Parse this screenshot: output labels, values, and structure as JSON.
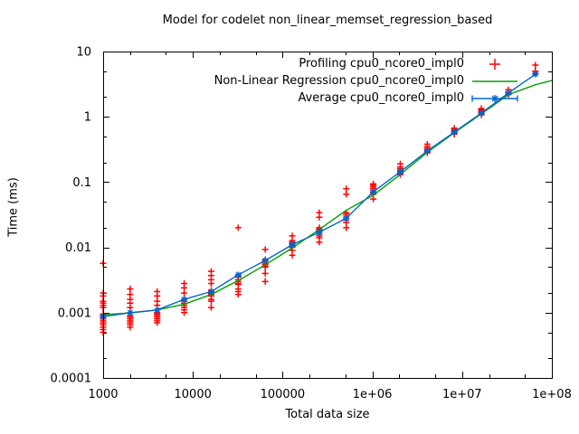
{
  "chart_data": {
    "type": "scatter",
    "title": "Model for codelet non_linear_memset_regression_based",
    "xlabel": "Total data size",
    "ylabel": "Time (ms)",
    "xlim": [
      1000,
      100000000
    ],
    "ylim": [
      0.0001,
      10
    ],
    "log_x": true,
    "log_y": true,
    "grid": false,
    "legend_position": "top-right-inside",
    "x_ticks": [
      {
        "value": 1000,
        "label": "1000"
      },
      {
        "value": 10000,
        "label": "10000"
      },
      {
        "value": 100000,
        "label": "100000"
      },
      {
        "value": 1000000,
        "label": "1e+06"
      },
      {
        "value": 10000000,
        "label": "1e+07"
      },
      {
        "value": 100000000,
        "label": "1e+08"
      }
    ],
    "y_ticks": [
      {
        "value": 0.0001,
        "label": "0.0001"
      },
      {
        "value": 0.001,
        "label": "0.001"
      },
      {
        "value": 0.01,
        "label": "0.01"
      },
      {
        "value": 0.1,
        "label": "0.1"
      },
      {
        "value": 1,
        "label": "1"
      },
      {
        "value": 10,
        "label": "10"
      }
    ],
    "minor_tick_multipliers": [
      2,
      5
    ],
    "series": [
      {
        "name": "Profiling cpu0_ncore0_impl0",
        "style": "points",
        "marker": "plus",
        "color": "#ff0000",
        "clusters": [
          {
            "x": 1000,
            "values": [
              0.0057,
              0.002,
              0.0018,
              0.0015,
              0.0014,
              0.0013,
              0.0012,
              0.00095,
              0.0009,
              0.00085,
              0.0008,
              0.00075,
              0.0007,
              0.00065,
              0.0006,
              0.00055,
              0.0005
            ]
          },
          {
            "x": 2000,
            "values": [
              0.0023,
              0.0019,
              0.0016,
              0.0014,
              0.0012,
              0.0009,
              0.00085,
              0.0008,
              0.00075,
              0.0007,
              0.00065,
              0.0006
            ]
          },
          {
            "x": 4000,
            "values": [
              0.0021,
              0.0018,
              0.0015,
              0.0013,
              0.001,
              0.00095,
              0.0009,
              0.00085,
              0.0008,
              0.00075,
              0.0007
            ]
          },
          {
            "x": 8000,
            "values": [
              0.0028,
              0.0024,
              0.002,
              0.0016,
              0.0015,
              0.0014,
              0.0013,
              0.0012,
              0.0011,
              0.001
            ]
          },
          {
            "x": 16000,
            "values": [
              0.0043,
              0.0037,
              0.0032,
              0.0028,
              0.0022,
              0.0021,
              0.002,
              0.0019,
              0.0018,
              0.0016,
              0.0015,
              0.0012
            ]
          },
          {
            "x": 32000,
            "values": [
              0.02,
              0.0037,
              0.0035,
              0.0032,
              0.003,
              0.0028,
              0.0027,
              0.0023,
              0.0021,
              0.0019
            ]
          },
          {
            "x": 64000,
            "values": [
              0.0093,
              0.0065,
              0.0062,
              0.0058,
              0.0055,
              0.0052,
              0.005,
              0.004,
              0.003
            ]
          },
          {
            "x": 128000,
            "values": [
              0.015,
              0.0127,
              0.012,
              0.0115,
              0.011,
              0.0105,
              0.01,
              0.009,
              0.0076
            ]
          },
          {
            "x": 256000,
            "values": [
              0.034,
              0.029,
              0.02,
              0.019,
              0.018,
              0.017,
              0.016,
              0.015,
              0.014,
              0.012
            ]
          },
          {
            "x": 512000,
            "values": [
              0.079,
              0.065,
              0.034,
              0.032,
              0.03,
              0.028,
              0.026,
              0.024,
              0.02
            ]
          },
          {
            "x": 1024000,
            "values": [
              0.094,
              0.09,
              0.085,
              0.08,
              0.075,
              0.07,
              0.068,
              0.065,
              0.055
            ]
          },
          {
            "x": 2048000,
            "values": [
              0.19,
              0.17,
              0.16,
              0.15,
              0.145,
              0.14,
              0.135,
              0.13
            ]
          },
          {
            "x": 4096000,
            "values": [
              0.38,
              0.35,
              0.33,
              0.31,
              0.3,
              0.29,
              0.28
            ]
          },
          {
            "x": 8192000,
            "values": [
              0.67,
              0.64,
              0.62,
              0.6,
              0.58,
              0.56,
              0.54
            ]
          },
          {
            "x": 16384000,
            "values": [
              1.34,
              1.28,
              1.22,
              1.17,
              1.12,
              1.07
            ]
          },
          {
            "x": 32768000,
            "values": [
              2.6,
              2.4,
              2.2
            ]
          },
          {
            "x": 65536000,
            "values": [
              6.2,
              5.0,
              4.6
            ]
          }
        ]
      },
      {
        "name": "Non-Linear Regression cpu0_ncore0_impl0",
        "style": "line",
        "marker": "none",
        "color": "#00a000",
        "points": [
          [
            1000,
            0.00093
          ],
          [
            2000,
            0.00099
          ],
          [
            4000,
            0.0011
          ],
          [
            8000,
            0.00135
          ],
          [
            16000,
            0.0019
          ],
          [
            32000,
            0.0031
          ],
          [
            64000,
            0.0054
          ],
          [
            128000,
            0.0098
          ],
          [
            256000,
            0.0188
          ],
          [
            512000,
            0.037
          ],
          [
            1024000,
            0.063
          ],
          [
            2048000,
            0.131
          ],
          [
            4096000,
            0.286
          ],
          [
            8192000,
            0.57
          ],
          [
            16384000,
            1.11
          ],
          [
            32768000,
            2.18
          ],
          [
            65536000,
            3.1
          ],
          [
            100000000,
            3.6
          ]
        ]
      },
      {
        "name": "Average cpu0_ncore0_impl0",
        "style": "line-points",
        "marker": "star",
        "color": "#0066cc",
        "points": [
          [
            1000,
            0.00087
          ],
          [
            2000,
            0.001
          ],
          [
            4000,
            0.0011
          ],
          [
            8000,
            0.0016
          ],
          [
            16000,
            0.0021
          ],
          [
            32000,
            0.0038
          ],
          [
            64000,
            0.0063
          ],
          [
            128000,
            0.011
          ],
          [
            256000,
            0.017
          ],
          [
            512000,
            0.028
          ],
          [
            1024000,
            0.071
          ],
          [
            2048000,
            0.144
          ],
          [
            4096000,
            0.3
          ],
          [
            8192000,
            0.585
          ],
          [
            16384000,
            1.14
          ],
          [
            32768000,
            2.31
          ],
          [
            65536000,
            4.5
          ]
        ]
      }
    ],
    "colors": {
      "border": "#000000",
      "background": "#ffffff",
      "text": "#000000"
    }
  }
}
